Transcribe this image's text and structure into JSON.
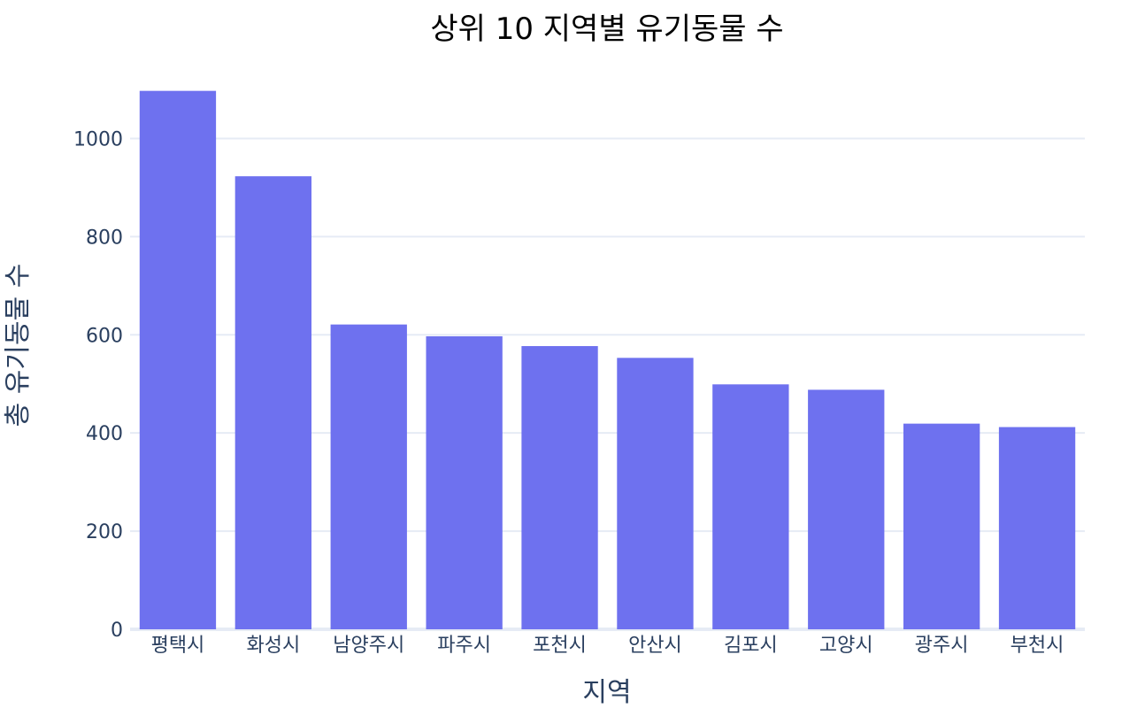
{
  "chart_data": {
    "type": "bar",
    "title": "상위 10 지역별 유기동물 수",
    "xlabel": "지역",
    "ylabel": "총 유기동물 수",
    "categories": [
      "평택시",
      "화성시",
      "남양주시",
      "파주시",
      "포천시",
      "안산시",
      "김포시",
      "고양시",
      "광주시",
      "부천시"
    ],
    "values": [
      1097,
      923,
      621,
      597,
      577,
      553,
      499,
      488,
      419,
      412
    ],
    "ylim": [
      0,
      1100
    ],
    "yticks": [
      0,
      200,
      400,
      600,
      800,
      1000
    ],
    "grid": true,
    "bar_color": "#6e71ef",
    "grid_color": "#e6ebf5",
    "text_color": "#2a3f5f"
  }
}
